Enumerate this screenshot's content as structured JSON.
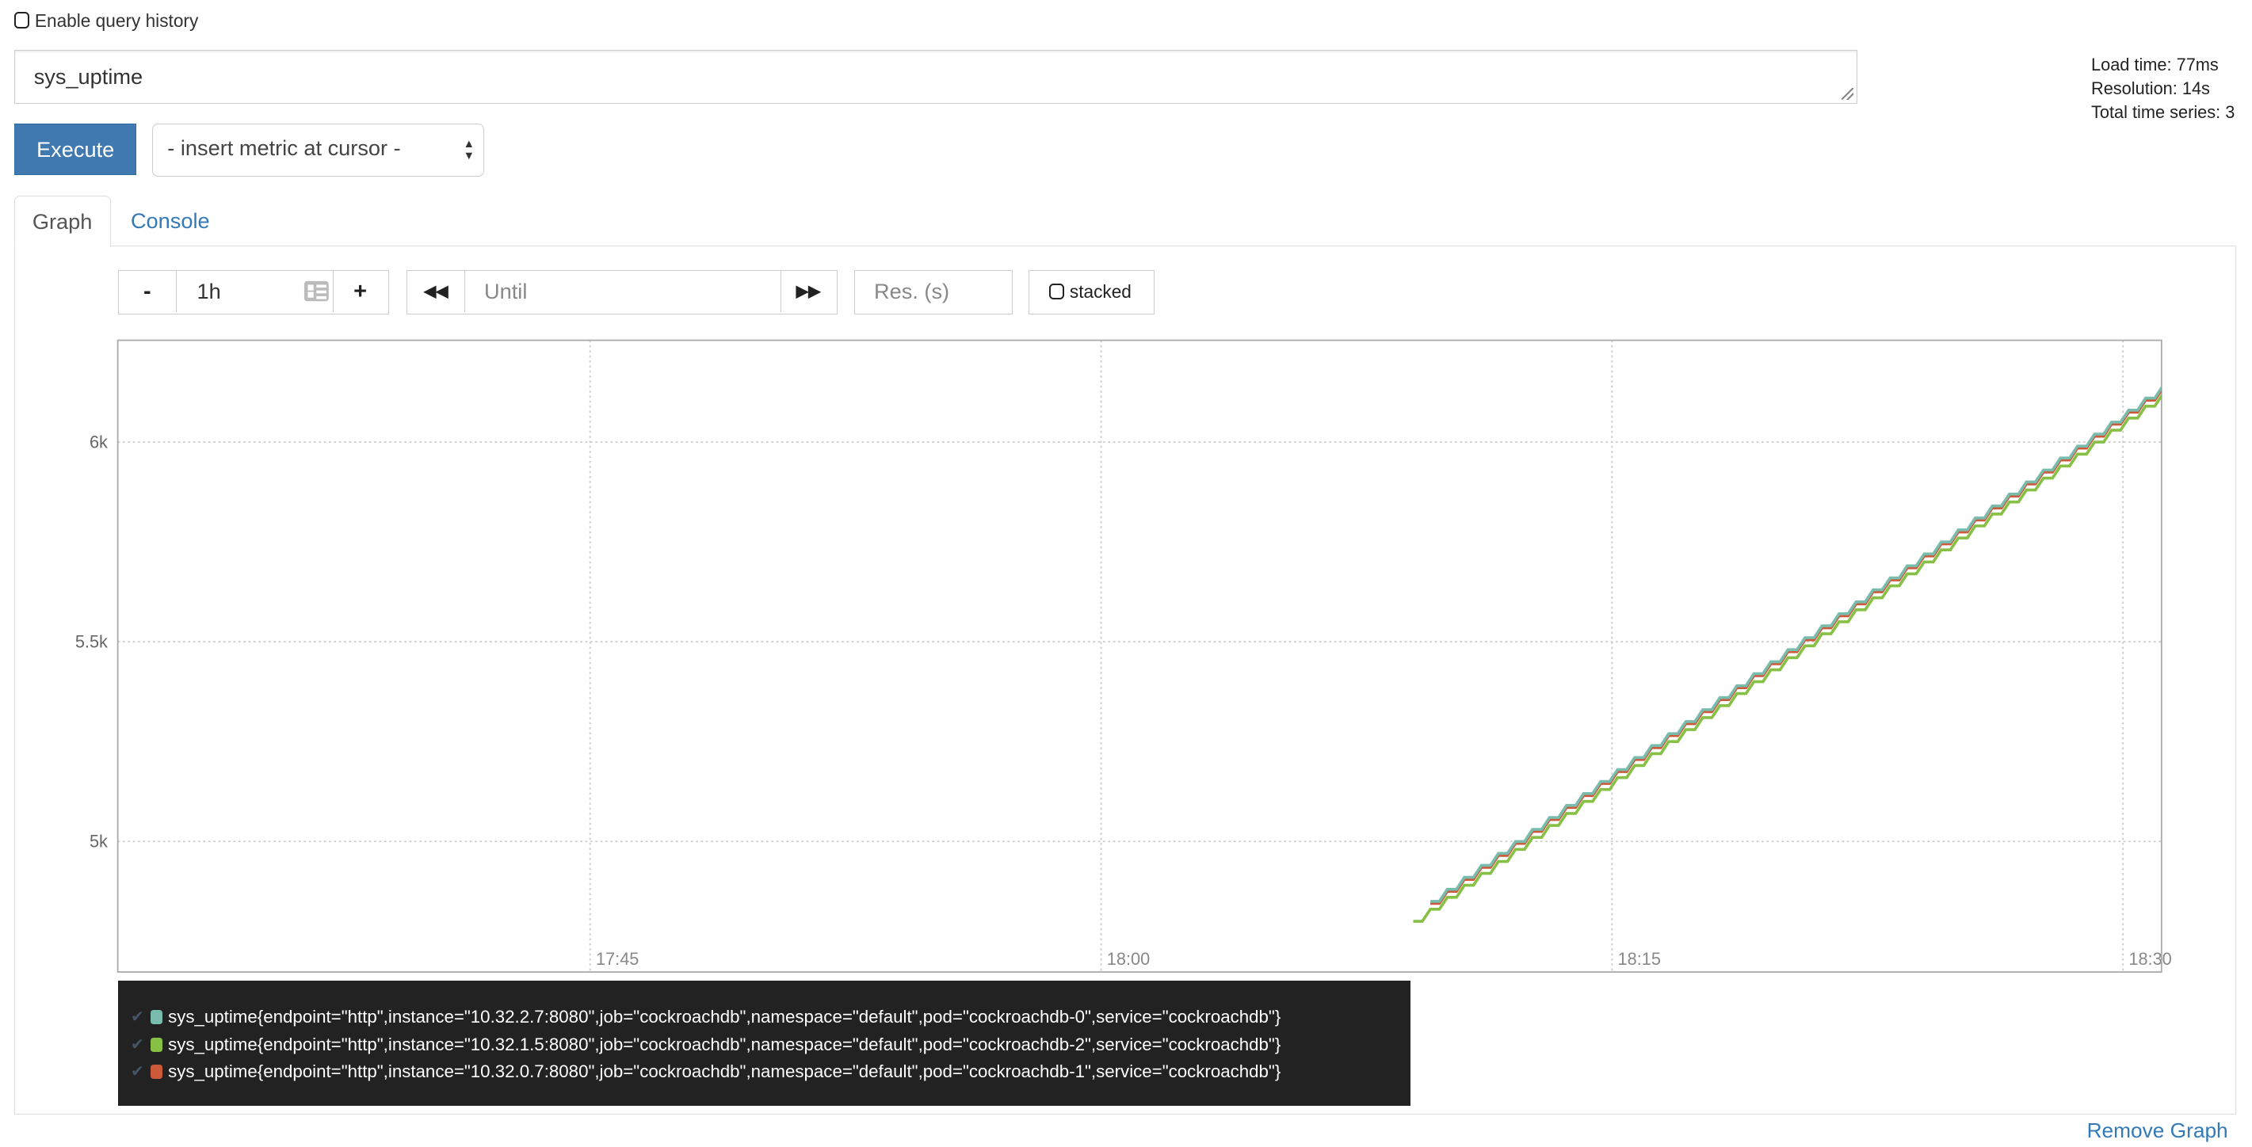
{
  "query_history": {
    "label": "Enable query history",
    "checked": false
  },
  "expression": {
    "value": "sys_uptime"
  },
  "stats": {
    "load_time": "Load time: 77ms",
    "resolution": "Resolution: 14s",
    "total_series": "Total time series: 3"
  },
  "execute_label": "Execute",
  "metric_select": {
    "selected": "- insert metric at cursor -"
  },
  "tabs": [
    {
      "label": "Graph",
      "active": true
    },
    {
      "label": "Console",
      "active": false
    }
  ],
  "controls": {
    "range_minus": "-",
    "range_value": "1h",
    "range_plus": "+",
    "back_icon": "double-chevron-left-icon",
    "until_placeholder": "Until",
    "forward_icon": "double-chevron-right-icon",
    "res_placeholder": "Res. (s)",
    "stacked_label": "stacked",
    "stacked_checked": false
  },
  "remove_graph_label": "Remove Graph",
  "colors": {
    "accent": "#337ab7",
    "execute": "#4078b0",
    "legend_bg": "#222222"
  },
  "chart_data": {
    "type": "line",
    "xlim": [
      "17:31:08",
      "18:31:08"
    ],
    "ylim": [
      4673,
      6255
    ],
    "x_ticks": [
      "17:45",
      "18:00",
      "18:15",
      "18:30"
    ],
    "y_ticks": [
      {
        "value": 5000,
        "label": "5k"
      },
      {
        "value": 5500,
        "label": "5.5k"
      },
      {
        "value": 6000,
        "label": "6k"
      }
    ],
    "grid": true,
    "legend_placement": "bottom",
    "x": [
      "18:09:10",
      "18:09:40",
      "18:10:10",
      "18:10:40",
      "18:11:10",
      "18:11:40",
      "18:12:10",
      "18:12:40",
      "18:13:10",
      "18:13:40",
      "18:14:10",
      "18:14:40",
      "18:15:10",
      "18:15:40",
      "18:16:10",
      "18:16:40",
      "18:17:10",
      "18:17:40",
      "18:18:10",
      "18:18:40",
      "18:19:10",
      "18:19:40",
      "18:20:10",
      "18:20:40",
      "18:21:10",
      "18:21:40",
      "18:22:10",
      "18:22:40",
      "18:23:10",
      "18:23:40",
      "18:24:10",
      "18:24:40",
      "18:25:10",
      "18:25:40",
      "18:26:10",
      "18:26:40",
      "18:27:10",
      "18:27:40",
      "18:28:10",
      "18:28:40",
      "18:29:10",
      "18:29:40",
      "18:30:10",
      "18:30:40",
      "18:31:10"
    ],
    "series": [
      {
        "name": "sys_uptime{endpoint=\"http\",instance=\"10.32.2.7:8080\",job=\"cockroachdb\",namespace=\"default\",pod=\"cockroachdb-0\",service=\"cockroachdb\"}",
        "color": "#79bcae",
        "values": [
          null,
          4850,
          4880,
          4910,
          4940,
          4970,
          5000,
          5030,
          5060,
          5090,
          5120,
          5150,
          5180,
          5210,
          5240,
          5270,
          5300,
          5330,
          5360,
          5390,
          5420,
          5450,
          5480,
          5510,
          5540,
          5570,
          5600,
          5630,
          5660,
          5690,
          5720,
          5750,
          5780,
          5810,
          5840,
          5870,
          5900,
          5930,
          5960,
          5990,
          6020,
          6050,
          6080,
          6110,
          6140
        ]
      },
      {
        "name": "sys_uptime{endpoint=\"http\",instance=\"10.32.1.5:8080\",job=\"cockroachdb\",namespace=\"default\",pod=\"cockroachdb-2\",service=\"cockroachdb\"}",
        "color": "#86c045",
        "values": [
          4800,
          4830,
          4860,
          4890,
          4920,
          4950,
          4980,
          5010,
          5040,
          5070,
          5100,
          5130,
          5160,
          5190,
          5220,
          5250,
          5280,
          5310,
          5340,
          5370,
          5400,
          5430,
          5460,
          5490,
          5520,
          5550,
          5580,
          5610,
          5640,
          5670,
          5700,
          5730,
          5760,
          5790,
          5820,
          5850,
          5880,
          5910,
          5940,
          5970,
          6000,
          6030,
          6060,
          6090,
          6120
        ]
      },
      {
        "name": "sys_uptime{endpoint=\"http\",instance=\"10.32.0.7:8080\",job=\"cockroachdb\",namespace=\"default\",pod=\"cockroachdb-1\",service=\"cockroachdb\"}",
        "color": "#cc5a3a",
        "values": [
          null,
          4845,
          4875,
          4905,
          4935,
          4965,
          4995,
          5025,
          5055,
          5085,
          5115,
          5145,
          5175,
          5205,
          5235,
          5265,
          5295,
          5325,
          5355,
          5385,
          5415,
          5445,
          5475,
          5505,
          5535,
          5565,
          5595,
          5625,
          5655,
          5685,
          5715,
          5745,
          5775,
          5805,
          5835,
          5865,
          5895,
          5925,
          5955,
          5985,
          6015,
          6045,
          6075,
          6105,
          6135
        ]
      }
    ]
  }
}
